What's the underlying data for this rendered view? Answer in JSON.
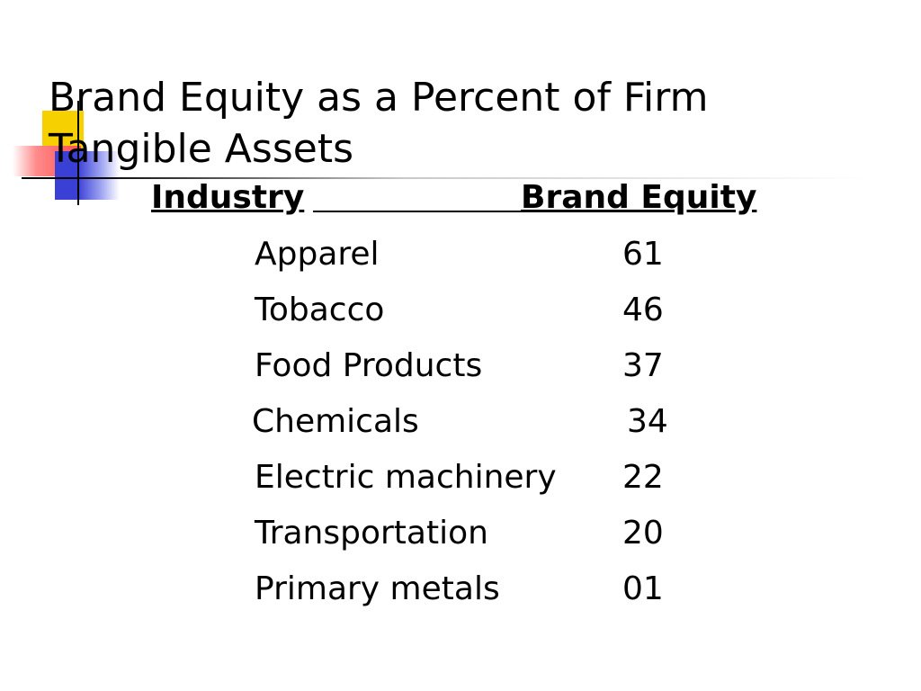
{
  "slide": {
    "title_lines": [
      "Brand Equity as a Percent of Firm",
      "Tangible Assets"
    ]
  },
  "table": {
    "columns": [
      "Industry",
      "Brand Equity"
    ],
    "rows": [
      {
        "industry": "Apparel",
        "value": "61"
      },
      {
        "industry": "Tobacco",
        "value": "46"
      },
      {
        "industry": "Food Products",
        "value": "37"
      },
      {
        "industry": "Chemicals",
        "value": "34"
      },
      {
        "industry": "Electric machinery",
        "value": "22"
      },
      {
        "industry": "Transportation",
        "value": "20"
      },
      {
        "industry": "Primary metals",
        "value": "01"
      }
    ]
  },
  "colors": {
    "background": "#ffffff",
    "text": "#000000",
    "deco_yellow": "#f6d000",
    "deco_red": "#ff4d4d",
    "deco_blue": "#3a3fd6"
  }
}
